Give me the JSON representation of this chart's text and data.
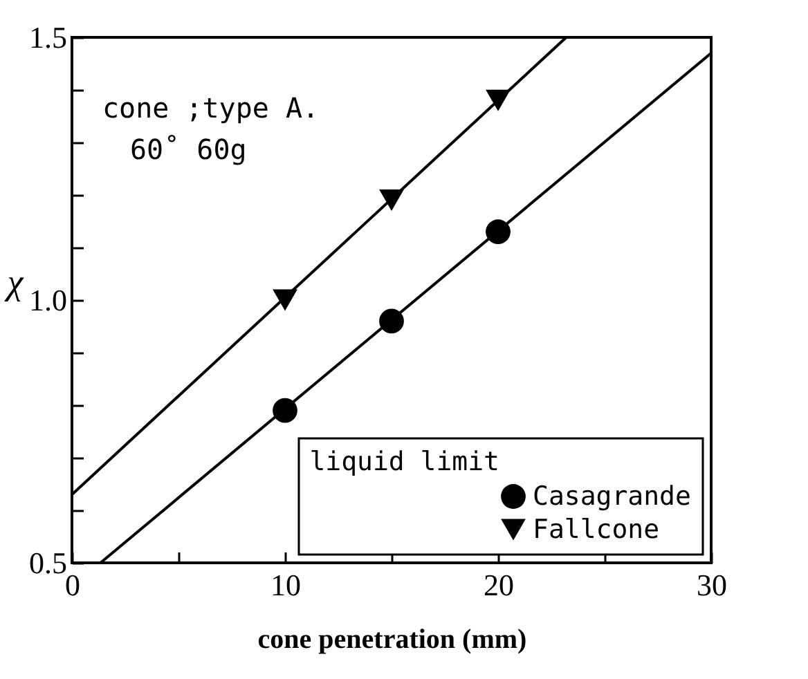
{
  "chart_data": {
    "type": "scatter",
    "xlabel": "cone penetration  (mm)",
    "ylabel": "χ",
    "legend_title": "liquid limit",
    "legend": "bottom right",
    "grid": false,
    "xlim": [
      0,
      30
    ],
    "ylim": [
      0.5,
      1.5
    ],
    "xticks": [
      0,
      {
        "value": 5,
        "label": null
      },
      10,
      {
        "value": 15,
        "label": null
      },
      20,
      {
        "value": 25,
        "label": null
      },
      30
    ],
    "yticks": [
      0.5,
      {
        "value": 0.6,
        "label": null
      },
      {
        "value": 0.7,
        "label": null
      },
      {
        "value": 0.8,
        "label": null
      },
      {
        "value": 0.9,
        "label": null
      },
      {
        "value": 1,
        "label": "1.0"
      },
      {
        "value": 1.1,
        "label": null
      },
      {
        "value": 1.2,
        "label": null
      },
      {
        "value": 1.3,
        "label": null
      },
      {
        "value": 1.4,
        "label": null
      },
      1.5
    ],
    "annotations": [
      "cone ;type A.",
      "60˚    60g"
    ],
    "series": [
      {
        "type": "scatter",
        "name": "Casagrande",
        "color": "#000000",
        "marker": "circle",
        "x": [
          10,
          15,
          20
        ],
        "values": [
          0.79,
          0.96,
          1.13
        ]
      },
      {
        "type": "scatter",
        "name": "Fallcone",
        "color": "#000000",
        "marker": "triangle",
        "x": [
          10,
          15,
          20
        ],
        "values": [
          1.0,
          1.19,
          1.38
        ]
      },
      {
        "type": "line",
        "color": "#000000",
        "x": [
          1.34,
          30
        ],
        "values": [
          0.5,
          1.47
        ]
      },
      {
        "type": "line",
        "color": "#000000",
        "x": [
          0,
          23.2
        ],
        "values": [
          0.63,
          1.5
        ]
      }
    ]
  }
}
